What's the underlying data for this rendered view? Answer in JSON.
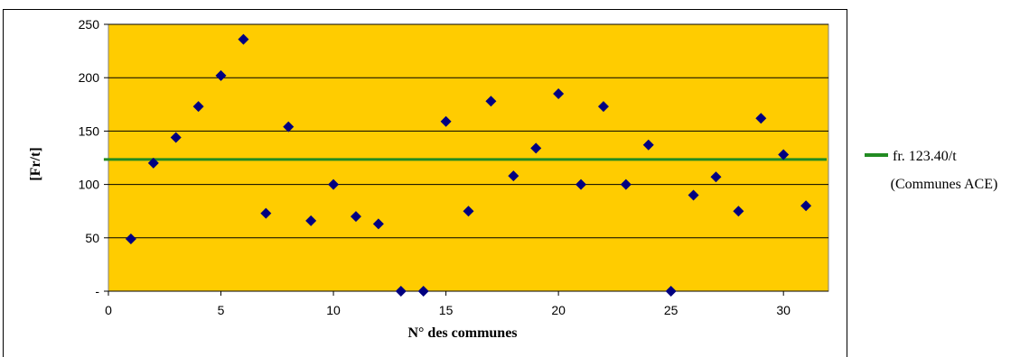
{
  "chart_data": {
    "type": "scatter",
    "xlabel": "N° des communes",
    "ylabel": "[Fr/t]",
    "xlim": [
      0,
      32
    ],
    "ylim": [
      0,
      250
    ],
    "x_ticks": [
      "0",
      "5",
      "10",
      "15",
      "20",
      "25",
      "30"
    ],
    "y_ticks": [
      "-",
      "50",
      "100",
      "150",
      "200",
      "250"
    ],
    "grid": "horizontal",
    "plot_background": "#FFCC00",
    "marker_color": "#000080",
    "series": [
      {
        "x": [
          1,
          2,
          3,
          4,
          5,
          6,
          7,
          8,
          9,
          10,
          11,
          12,
          13,
          14,
          15,
          16,
          17,
          18,
          19,
          20,
          21,
          22,
          23,
          24,
          25,
          26,
          27,
          28,
          29,
          30,
          31
        ],
        "y": [
          49,
          120,
          144,
          173,
          202,
          236,
          73,
          154,
          66,
          100,
          70,
          63,
          0,
          0,
          159,
          75,
          178,
          108,
          134,
          185,
          100,
          173,
          100,
          137,
          0,
          90,
          107,
          75,
          162,
          128,
          80
        ]
      }
    ],
    "reference_line": {
      "value": 123.4,
      "color": "#228B22",
      "legend_line1": "fr. 123.40/t",
      "legend_line2": "(Communes ACE)"
    }
  }
}
